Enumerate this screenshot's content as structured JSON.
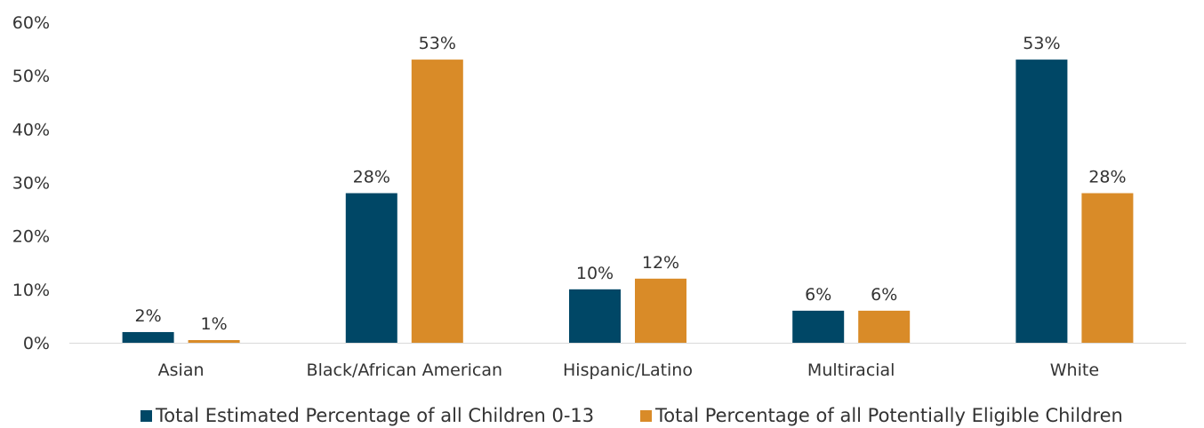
{
  "chart_data": {
    "type": "bar",
    "categories": [
      "Asian",
      "Black/African American",
      "Hispanic/Latino",
      "Multiracial",
      "White"
    ],
    "series": [
      {
        "name": "Total Estimated Percentage of all Children 0-13",
        "values": [
          2,
          28,
          10,
          6,
          53
        ],
        "labels": [
          "2%",
          "28%",
          "10%",
          "6%",
          "53%"
        ],
        "color": "#004766"
      },
      {
        "name": "Total Percentage of all Potentially Eligible Children",
        "values": [
          0.5,
          53,
          12,
          6,
          28
        ],
        "labels": [
          "1%",
          "53%",
          "12%",
          "6%",
          "28%"
        ],
        "color": "#D98B28"
      }
    ],
    "ylim": [
      0,
      60
    ],
    "yticks": [
      0,
      10,
      20,
      30,
      40,
      50,
      60
    ],
    "ytick_labels": [
      "0%",
      "10%",
      "20%",
      "30%",
      "40%",
      "50%",
      "60%"
    ],
    "title": "",
    "xlabel": "",
    "ylabel": "",
    "grid": false,
    "legend_position": "bottom"
  }
}
